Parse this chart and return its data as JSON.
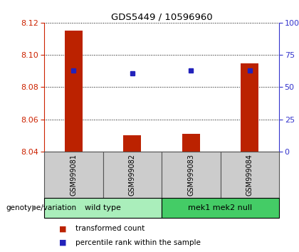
{
  "title": "GDS5449 / 10596960",
  "samples": [
    "GSM999081",
    "GSM999082",
    "GSM999083",
    "GSM999084"
  ],
  "transformed_counts": [
    8.115,
    8.05,
    8.051,
    8.095
  ],
  "percentile_ranks": [
    63,
    61,
    63,
    63
  ],
  "ylim_left": [
    8.04,
    8.12
  ],
  "yticks_left": [
    8.04,
    8.06,
    8.08,
    8.1,
    8.12
  ],
  "ylim_right": [
    0,
    100
  ],
  "yticks_right": [
    0,
    25,
    50,
    75,
    100
  ],
  "ytick_labels_right": [
    "0",
    "25",
    "50",
    "75",
    "100%"
  ],
  "bar_color": "#BB2200",
  "dot_color": "#2222BB",
  "bar_width": 0.3,
  "left_axis_color": "#CC2200",
  "right_axis_color": "#3333CC",
  "sample_box_color": "#CCCCCC",
  "sample_box_edge": "#555555",
  "group1_name": "wild type",
  "group1_color": "#AAEEBB",
  "group2_name": "mek1 mek2 null",
  "group2_color": "#44CC66",
  "group_label": "genotype/variation",
  "legend_items": [
    {
      "color": "#BB2200",
      "label": "transformed count"
    },
    {
      "color": "#2222BB",
      "label": "percentile rank within the sample"
    }
  ]
}
